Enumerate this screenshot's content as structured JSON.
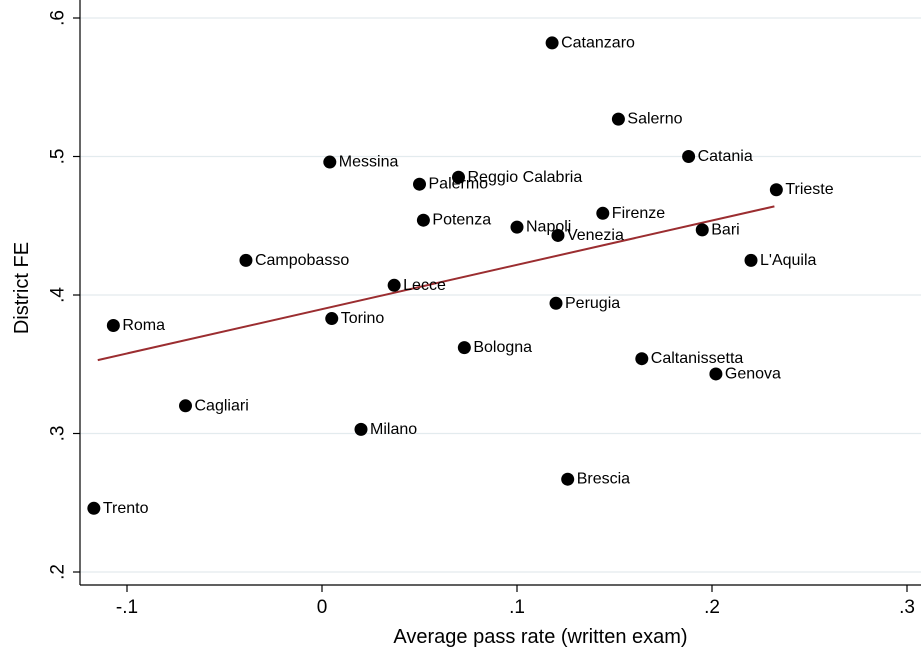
{
  "chart_data": {
    "type": "scatter",
    "title": "",
    "xlabel": "Average pass rate (written exam)",
    "ylabel": "District FE",
    "xlim": [
      -0.125,
      0.3
    ],
    "ylim": [
      0.2,
      0.61
    ],
    "x_ticks": [
      -0.1,
      0,
      0.1,
      0.2,
      0.3
    ],
    "x_tick_labels": [
      "-.1",
      "0",
      ".1",
      ".2",
      ".3"
    ],
    "y_ticks": [
      0.2,
      0.3,
      0.4,
      0.5,
      0.6
    ],
    "y_tick_labels": [
      ".2",
      ".3",
      ".4",
      ".5",
      ".6"
    ],
    "grid": "horizontal",
    "legend": "none",
    "points": [
      {
        "label": "Catanzaro",
        "x": 0.118,
        "y": 0.582
      },
      {
        "label": "Salerno",
        "x": 0.152,
        "y": 0.527
      },
      {
        "label": "Catania",
        "x": 0.188,
        "y": 0.5
      },
      {
        "label": "Messina",
        "x": 0.004,
        "y": 0.496
      },
      {
        "label": "Reggio Calabria",
        "x": 0.07,
        "y": 0.485
      },
      {
        "label": "Palermo",
        "x": 0.05,
        "y": 0.48
      },
      {
        "label": "Trieste",
        "x": 0.233,
        "y": 0.476
      },
      {
        "label": "Firenze",
        "x": 0.144,
        "y": 0.459
      },
      {
        "label": "Potenza",
        "x": 0.052,
        "y": 0.454
      },
      {
        "label": "Napoli",
        "x": 0.1,
        "y": 0.449
      },
      {
        "label": "Bari",
        "x": 0.195,
        "y": 0.447
      },
      {
        "label": "Venezia",
        "x": 0.121,
        "y": 0.443
      },
      {
        "label": "Campobasso",
        "x": -0.039,
        "y": 0.425
      },
      {
        "label": "L'Aquila",
        "x": 0.22,
        "y": 0.425
      },
      {
        "label": "Lecce",
        "x": 0.037,
        "y": 0.407
      },
      {
        "label": "Perugia",
        "x": 0.12,
        "y": 0.394
      },
      {
        "label": "Torino",
        "x": 0.005,
        "y": 0.383
      },
      {
        "label": "Roma",
        "x": -0.107,
        "y": 0.378
      },
      {
        "label": "Bologna",
        "x": 0.073,
        "y": 0.362
      },
      {
        "label": "Caltanissetta",
        "x": 0.164,
        "y": 0.354
      },
      {
        "label": "Genova",
        "x": 0.202,
        "y": 0.343
      },
      {
        "label": "Cagliari",
        "x": -0.07,
        "y": 0.32
      },
      {
        "label": "Milano",
        "x": 0.02,
        "y": 0.303
      },
      {
        "label": "Brescia",
        "x": 0.126,
        "y": 0.267
      },
      {
        "label": "Trento",
        "x": -0.117,
        "y": 0.246
      }
    ],
    "fit_line": {
      "x": [
        -0.115,
        0.232
      ],
      "y": [
        0.353,
        0.464
      ]
    },
    "colors": {
      "points": "#000000",
      "fit_line": "#9b2d30",
      "grid": "#e3ebee"
    }
  }
}
